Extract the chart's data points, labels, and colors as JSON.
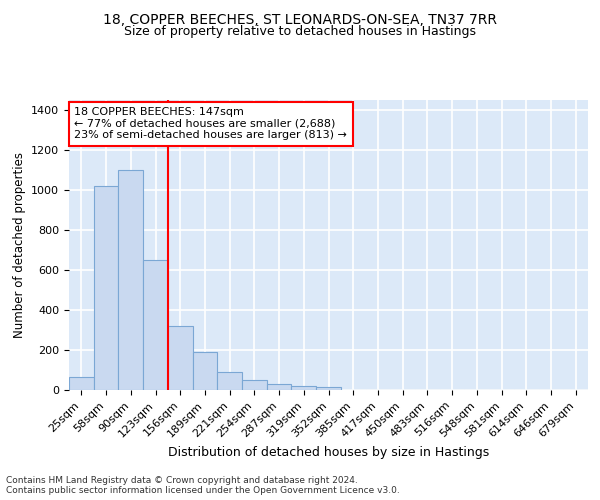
{
  "title": "18, COPPER BEECHES, ST LEONARDS-ON-SEA, TN37 7RR",
  "subtitle": "Size of property relative to detached houses in Hastings",
  "xlabel": "Distribution of detached houses by size in Hastings",
  "ylabel": "Number of detached properties",
  "bin_labels": [
    "25sqm",
    "58sqm",
    "90sqm",
    "123sqm",
    "156sqm",
    "189sqm",
    "221sqm",
    "254sqm",
    "287sqm",
    "319sqm",
    "352sqm",
    "385sqm",
    "417sqm",
    "450sqm",
    "483sqm",
    "516sqm",
    "548sqm",
    "581sqm",
    "614sqm",
    "646sqm",
    "679sqm"
  ],
  "bar_heights": [
    65,
    1020,
    1100,
    650,
    320,
    192,
    90,
    48,
    28,
    20,
    13,
    0,
    0,
    0,
    0,
    0,
    0,
    0,
    0,
    0,
    0
  ],
  "bar_color": "#c9d9f0",
  "bar_edge_color": "#7ba7d4",
  "vline_x": 3.5,
  "vline_color": "red",
  "annotation_text": "18 COPPER BEECHES: 147sqm\n← 77% of detached houses are smaller (2,688)\n23% of semi-detached houses are larger (813) →",
  "annotation_box_color": "white",
  "annotation_box_edge": "red",
  "ylim": [
    0,
    1450
  ],
  "yticks": [
    0,
    200,
    400,
    600,
    800,
    1000,
    1200,
    1400
  ],
  "bg_color": "#dce9f8",
  "grid_color": "white",
  "footer_text": "Contains HM Land Registry data © Crown copyright and database right 2024.\nContains public sector information licensed under the Open Government Licence v3.0.",
  "title_fontsize": 10,
  "subtitle_fontsize": 9,
  "xlabel_fontsize": 9,
  "ylabel_fontsize": 8.5,
  "tick_fontsize": 8,
  "annotation_fontsize": 8
}
